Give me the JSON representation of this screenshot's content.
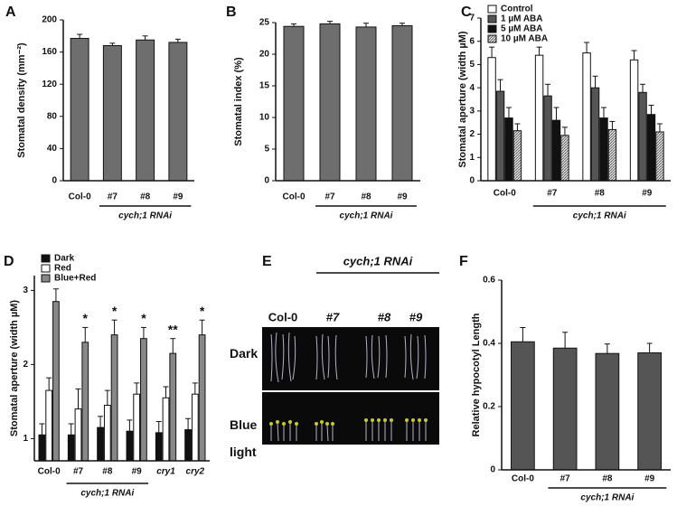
{
  "chart_data": [
    {
      "type": "bar",
      "panel": "A",
      "y_label": "Stomatal density (mm⁻²)",
      "categories": [
        "Col-0",
        "#7",
        "#8",
        "#9"
      ],
      "group_label": "cych;1 RNAi",
      "values": [
        177,
        168,
        175,
        172
      ],
      "errors": [
        5,
        3,
        5,
        4
      ],
      "color": "#6e6e6e",
      "ylim": [
        0,
        200
      ],
      "yticks": [
        0,
        40,
        80,
        120,
        160,
        200
      ]
    },
    {
      "type": "bar",
      "panel": "B",
      "y_label": "Stomatal index (%)",
      "categories": [
        "Col-0",
        "#7",
        "#8",
        "#9"
      ],
      "group_label": "cych;1 RNAi",
      "values": [
        24.4,
        24.8,
        24.3,
        24.5
      ],
      "errors": [
        0.4,
        0.4,
        0.6,
        0.4
      ],
      "color": "#6e6e6e",
      "ylim": [
        0,
        25
      ],
      "yticks": [
        0,
        5,
        10,
        15,
        20,
        25
      ]
    },
    {
      "type": "grouped_bar",
      "panel": "C",
      "y_label": "Stomatal aperture (width µM)",
      "categories": [
        "Col-0",
        "#7",
        "#8",
        "#9"
      ],
      "group_label": "cych;1 RNAi",
      "legend": "upper left",
      "series": [
        {
          "name": "Control",
          "color": "#ffffff",
          "values": [
            5.3,
            5.4,
            5.5,
            5.2
          ],
          "errors": [
            0.45,
            0.35,
            0.45,
            0.4
          ]
        },
        {
          "name": "1 µM ABA",
          "color": "#555555",
          "values": [
            3.85,
            3.65,
            4.0,
            3.8
          ],
          "errors": [
            0.5,
            0.5,
            0.5,
            0.35
          ]
        },
        {
          "name": "5 µM ABA",
          "color": "#111111",
          "values": [
            2.7,
            2.6,
            2.7,
            2.85
          ],
          "errors": [
            0.45,
            0.55,
            0.45,
            0.4
          ]
        },
        {
          "name": "10 µM ABA",
          "color": "#bbbbbb",
          "hatch": true,
          "values": [
            2.15,
            1.95,
            2.2,
            2.1
          ],
          "errors": [
            0.3,
            0.35,
            0.35,
            0.35
          ]
        }
      ],
      "ylim": [
        0,
        7
      ],
      "yticks": [
        0,
        1,
        2,
        3,
        4,
        5,
        6,
        7
      ]
    },
    {
      "type": "grouped_bar",
      "panel": "D",
      "y_label": "Stomatal aperture (width µM)",
      "categories": [
        "Col-0",
        "#7",
        "#8",
        "#9",
        "cry1",
        "cry2"
      ],
      "group_label": "cych;1 RNAi",
      "legend": "upper left",
      "series": [
        {
          "name": "Dark",
          "color": "#111111",
          "values": [
            1.05,
            1.05,
            1.15,
            1.1,
            1.08,
            1.12
          ],
          "errors": [
            0.15,
            0.15,
            0.15,
            0.15,
            0.15,
            0.15
          ]
        },
        {
          "name": "Red",
          "color": "#ffffff",
          "values": [
            1.65,
            1.4,
            1.45,
            1.6,
            1.55,
            1.6
          ],
          "errors": [
            0.17,
            0.27,
            0.2,
            0.15,
            0.15,
            0.15
          ]
        },
        {
          "name": "Blue+Red",
          "color": "#888888",
          "values": [
            2.85,
            2.3,
            2.4,
            2.35,
            2.15,
            2.4
          ],
          "errors": [
            0.17,
            0.2,
            0.2,
            0.15,
            0.2,
            0.2
          ]
        }
      ],
      "annotations": [
        null,
        "*",
        "*",
        "*",
        "**",
        "*"
      ],
      "ylim": [
        0.7,
        3.2
      ],
      "yticks": [
        1,
        2,
        3
      ]
    },
    {
      "type": "bar",
      "panel": "F",
      "y_label": "Relative hypocotyl Length",
      "categories": [
        "Col-0",
        "#7",
        "#8",
        "#9"
      ],
      "group_label": "cych;1 RNAi",
      "values": [
        0.405,
        0.385,
        0.368,
        0.37
      ],
      "errors": [
        0.045,
        0.05,
        0.03,
        0.03
      ],
      "color": "#555555",
      "ylim": [
        0,
        0.6
      ],
      "yticks": [
        0,
        0.2,
        0.4,
        0.6
      ]
    }
  ],
  "photo_panel": {
    "panel": "E",
    "group_label": "cych;1 RNAi",
    "columns": [
      "Col-0",
      "#7",
      "#8",
      "#9"
    ],
    "rows": [
      "Dark",
      "Blue light"
    ]
  }
}
